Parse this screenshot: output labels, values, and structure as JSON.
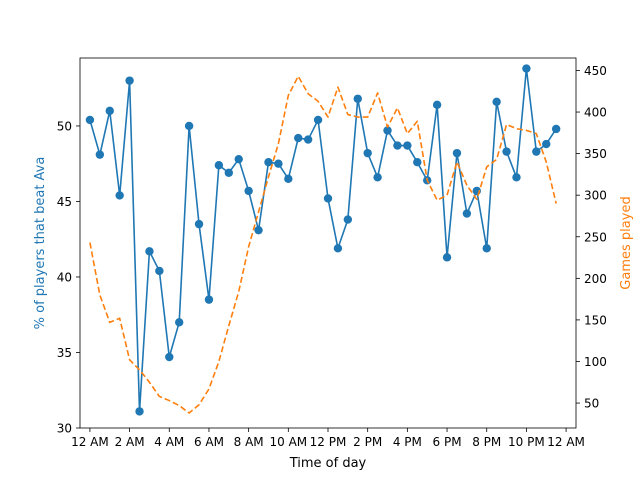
{
  "chart_data": {
    "type": "line",
    "title": "",
    "xlabel": "Time of day",
    "ylabel_left": "% of players that beat Ava",
    "ylabel_right": "Games played",
    "xlim": [
      -0.5,
      24.5
    ],
    "ylim_left": [
      30,
      54.5
    ],
    "ylim_right": [
      20,
      465
    ],
    "grid": false,
    "x_ticks": [
      {
        "v": 0,
        "label": "12 AM"
      },
      {
        "v": 2,
        "label": "2 AM"
      },
      {
        "v": 4,
        "label": "4 AM"
      },
      {
        "v": 6,
        "label": "6 AM"
      },
      {
        "v": 8,
        "label": "8 AM"
      },
      {
        "v": 10,
        "label": "10 AM"
      },
      {
        "v": 12,
        "label": "12 PM"
      },
      {
        "v": 14,
        "label": "2 PM"
      },
      {
        "v": 16,
        "label": "4 PM"
      },
      {
        "v": 18,
        "label": "6 PM"
      },
      {
        "v": 20,
        "label": "8 PM"
      },
      {
        "v": 22,
        "label": "10 PM"
      },
      {
        "v": 24,
        "label": "12 AM"
      }
    ],
    "y_ticks_left": [
      30,
      35,
      40,
      45,
      50
    ],
    "y_ticks_right": [
      50,
      100,
      150,
      200,
      250,
      300,
      350,
      400,
      450
    ],
    "x": [
      0,
      0.5,
      1,
      1.5,
      2,
      2.5,
      3,
      3.5,
      4,
      4.5,
      5,
      5.5,
      6,
      6.5,
      7,
      7.5,
      8,
      8.5,
      9,
      9.5,
      10,
      10.5,
      11,
      11.5,
      12,
      12.5,
      13,
      13.5,
      14,
      14.5,
      15,
      15.5,
      16,
      16.5,
      17,
      17.5,
      18,
      18.5,
      19,
      19.5,
      20,
      20.5,
      21,
      21.5,
      22,
      22.5,
      23,
      23.5
    ],
    "series": [
      {
        "name": "",
        "axis": "left",
        "color": "#1f77b4",
        "style": "solid-markers",
        "values": [
          50.4,
          48.1,
          51.0,
          45.4,
          53.0,
          31.1,
          41.7,
          40.4,
          34.7,
          37.0,
          50.0,
          43.5,
          38.5,
          47.4,
          46.9,
          47.8,
          45.7,
          43.1,
          47.6,
          47.5,
          46.5,
          49.2,
          49.1,
          50.4,
          45.2,
          41.9,
          43.8,
          51.8,
          48.2,
          46.6,
          49.7,
          48.7,
          48.7,
          47.6,
          46.4,
          51.4,
          41.3,
          48.2,
          44.2,
          45.7,
          41.9,
          51.6,
          48.3,
          46.6,
          53.8,
          48.3,
          48.8,
          49.8
        ]
      },
      {
        "name": "",
        "axis": "right",
        "color": "#ff7f0e",
        "style": "dashed",
        "values": [
          243,
          180,
          147,
          152,
          102,
          90,
          75,
          58,
          53,
          47,
          38,
          48,
          67,
          100,
          143,
          184,
          238,
          280,
          322,
          362,
          420,
          443,
          422,
          413,
          394,
          430,
          397,
          394,
          394,
          423,
          382,
          405,
          374,
          389,
          318,
          294,
          300,
          340,
          312,
          295,
          334,
          343,
          385,
          380,
          378,
          374,
          340,
          290
        ]
      }
    ]
  }
}
